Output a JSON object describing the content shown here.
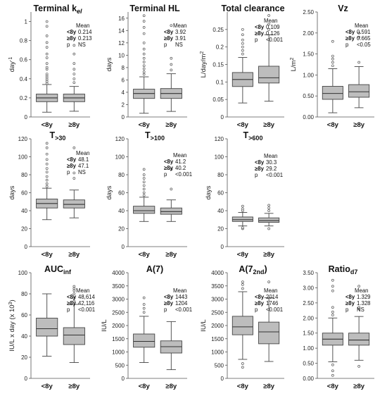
{
  "chart_data": [
    {
      "type": "boxplot",
      "title": "Terminal k",
      "title_sub": "el",
      "title_sub_italic": true,
      "ylabel": "day",
      "ylabel_sup": "-1",
      "ylim": [
        0,
        1.1
      ],
      "yticks": [
        0,
        0.2,
        0.4,
        0.6,
        0.8,
        1
      ],
      "ytick_labels": [
        "0",
        "0.2",
        "0.4",
        "0.6",
        "0.8",
        "1"
      ],
      "categories": [
        "<8y",
        "≥8y"
      ],
      "boxes": [
        {
          "min": 0.05,
          "q1": 0.16,
          "median": 0.2,
          "q3": 0.24,
          "max": 0.34,
          "outliers": [
            0.35,
            0.37,
            0.39,
            0.41,
            0.43,
            0.45,
            0.5,
            0.52,
            0.56,
            0.62,
            0.66,
            0.73,
            0.78,
            0.85,
            0.95,
            1.0
          ]
        },
        {
          "min": 0.06,
          "q1": 0.16,
          "median": 0.2,
          "q3": 0.24,
          "max": 0.32,
          "outliers": [
            0.36,
            0.4,
            0.45,
            0.5,
            0.56,
            0.66,
            0.75
          ]
        }
      ],
      "stats": {
        "header": "Mean",
        "rows": [
          {
            "label": "<8y",
            "value": "0.214"
          },
          {
            "label": "≥8y",
            "value": "0.213"
          },
          {
            "label": "p",
            "value": "NS"
          }
        ]
      }
    },
    {
      "type": "boxplot",
      "title": "Terminal HL",
      "title_sub": "",
      "ylabel": "days",
      "ylabel_sup": "",
      "ylim": [
        0,
        17
      ],
      "yticks": [
        0,
        2,
        4,
        6,
        8,
        10,
        12,
        14,
        16
      ],
      "ytick_labels": [
        "0",
        "2",
        "4",
        "6",
        "8",
        "10",
        "12",
        "14",
        "16"
      ],
      "categories": [
        "<8y",
        "≥8y"
      ],
      "boxes": [
        {
          "min": 0.6,
          "q1": 3.0,
          "median": 3.8,
          "q3": 4.5,
          "max": 6.5,
          "outliers": [
            6.9,
            7.3,
            7.8,
            8.3,
            8.9,
            9.5,
            10.2,
            11.0,
            12.0,
            13.5,
            14.5,
            15.5,
            16.4
          ]
        },
        {
          "min": 0.9,
          "q1": 3.0,
          "median": 3.8,
          "q3": 4.6,
          "max": 7.0,
          "outliers": [
            7.6,
            8.5,
            9.5,
            14.8
          ]
        }
      ],
      "stats": {
        "header": "Mean",
        "rows": [
          {
            "label": "<8y",
            "value": "3.92"
          },
          {
            "label": "≥8y",
            "value": "3.91"
          },
          {
            "label": "p",
            "value": "NS"
          }
        ]
      }
    },
    {
      "type": "boxplot",
      "title": "Total clearance",
      "title_sub": "",
      "ylabel": "L/day/m",
      "ylabel_sup": "2",
      "ylim": [
        0,
        0.3
      ],
      "yticks": [
        0,
        0.05,
        0.1,
        0.15,
        0.2,
        0.25
      ],
      "ytick_labels": [
        "0",
        "0.05",
        "0.1",
        "0.15",
        "0.2",
        "0.25"
      ],
      "categories": [
        "<8y",
        "≥8y"
      ],
      "boxes": [
        {
          "min": 0.04,
          "q1": 0.087,
          "median": 0.107,
          "q3": 0.127,
          "max": 0.17,
          "outliers": [
            0.18,
            0.19,
            0.2,
            0.21,
            0.22,
            0.235,
            0.25
          ]
        },
        {
          "min": 0.045,
          "q1": 0.097,
          "median": 0.112,
          "q3": 0.145,
          "max": 0.235,
          "outliers": [
            0.25,
            0.265,
            0.29
          ]
        }
      ],
      "stats": {
        "header": "Mean",
        "rows": [
          {
            "label": "<8y",
            "value": "0.109"
          },
          {
            "label": "≥8y",
            "value": "0.126"
          },
          {
            "label": "p",
            "value": "<0.001"
          }
        ]
      }
    },
    {
      "type": "boxplot",
      "title": "Vz",
      "title_sub": "",
      "ylabel": "L/m",
      "ylabel_sup": "2",
      "ylim": [
        0,
        2.5
      ],
      "yticks": [
        0,
        0.5,
        1,
        1.5,
        2,
        2.5
      ],
      "ytick_labels": [
        "0.00",
        "0.50",
        "1.00",
        "1.50",
        "2.00",
        "2.50"
      ],
      "categories": [
        "<8y",
        "≥8y"
      ],
      "boxes": [
        {
          "min": 0.1,
          "q1": 0.42,
          "median": 0.56,
          "q3": 0.73,
          "max": 1.15,
          "outliers": [
            1.22,
            1.3,
            1.38,
            1.45,
            1.8
          ]
        },
        {
          "min": 0.22,
          "q1": 0.47,
          "median": 0.6,
          "q3": 0.77,
          "max": 1.2,
          "outliers": [
            1.3,
            1.9,
            2.0
          ]
        }
      ],
      "stats": {
        "header": "Mean",
        "rows": [
          {
            "label": "<8y",
            "value": "0.591"
          },
          {
            "label": "≥8y",
            "value": "0.665"
          },
          {
            "label": "p",
            "value": "<0.05"
          }
        ]
      }
    },
    {
      "type": "boxplot",
      "title": "T",
      "title_sub": ">30",
      "ylabel": "days",
      "ylabel_sup": "",
      "ylim": [
        0,
        120
      ],
      "yticks": [
        0,
        20,
        40,
        60,
        80,
        100,
        120
      ],
      "ytick_labels": [
        "0",
        "20",
        "40",
        "60",
        "80",
        "100",
        "120"
      ],
      "categories": [
        "<8y",
        "≥8y"
      ],
      "boxes": [
        {
          "min": 30,
          "q1": 43,
          "median": 48,
          "q3": 53,
          "max": 65,
          "outliers": [
            67,
            70,
            74,
            78,
            83,
            87,
            92,
            97,
            103,
            110,
            115
          ]
        },
        {
          "min": 32,
          "q1": 43,
          "median": 47,
          "q3": 52,
          "max": 63,
          "outliers": [
            76,
            82,
            110
          ]
        }
      ],
      "stats": {
        "header": "Mean",
        "rows": [
          {
            "label": "<8y",
            "value": "48.1"
          },
          {
            "label": "≥8y",
            "value": "47.1"
          },
          {
            "label": "p",
            "value": "NS"
          }
        ]
      }
    },
    {
      "type": "boxplot",
      "title": "T",
      "title_sub": ">100",
      "ylabel": "days",
      "ylabel_sup": "",
      "ylim": [
        0,
        120
      ],
      "yticks": [
        0,
        20,
        40,
        60,
        80,
        100,
        120
      ],
      "ytick_labels": [
        "0",
        "20",
        "40",
        "60",
        "80",
        "100",
        "120"
      ],
      "categories": [
        "<8y",
        "≥8y"
      ],
      "boxes": [
        {
          "min": 28,
          "q1": 37,
          "median": 40,
          "q3": 45,
          "max": 55,
          "outliers": [
            57,
            60,
            64,
            68,
            72,
            76,
            80,
            86
          ]
        },
        {
          "min": 28,
          "q1": 36,
          "median": 39,
          "q3": 43,
          "max": 52,
          "outliers": [
            64,
            86
          ]
        }
      ],
      "stats": {
        "header": "Mean",
        "rows": [
          {
            "label": "<8y",
            "value": "41.2"
          },
          {
            "label": "≥8y",
            "value": "40.2"
          },
          {
            "label": "p",
            "value": "<0.001"
          }
        ]
      }
    },
    {
      "type": "boxplot",
      "title": "T",
      "title_sub": ">600",
      "ylabel": "days",
      "ylabel_sup": "",
      "ylim": [
        0,
        120
      ],
      "yticks": [
        0,
        20,
        40,
        60,
        80,
        100,
        120
      ],
      "ytick_labels": [
        "0",
        "20",
        "40",
        "60",
        "80",
        "100",
        "120"
      ],
      "categories": [
        "<8y",
        "≥8y"
      ],
      "boxes": [
        {
          "min": 23,
          "q1": 28,
          "median": 30,
          "q3": 33,
          "max": 38,
          "outliers": [
            20,
            21,
            40,
            42,
            45
          ]
        },
        {
          "min": 23,
          "q1": 27,
          "median": 29,
          "q3": 32,
          "max": 37,
          "outliers": [
            20,
            40,
            43,
            46
          ]
        }
      ],
      "stats": {
        "header": "Mean",
        "rows": [
          {
            "label": "<8y",
            "value": "30.3"
          },
          {
            "label": "≥8y",
            "value": "29.2"
          },
          {
            "label": "p",
            "value": "<0.001"
          }
        ]
      }
    },
    {
      "type": "boxplot",
      "title": "AUC",
      "title_sub": "inf",
      "ylabel": "IU/L x day (x 10",
      "ylabel_sup": "3",
      "ylabel_suffix": ")",
      "ylim": [
        0,
        100
      ],
      "yticks": [
        0,
        20,
        40,
        60,
        80,
        100
      ],
      "ytick_labels": [
        "0",
        "20",
        "40",
        "60",
        "80",
        "100"
      ],
      "categories": [
        "<8y",
        "≥8y"
      ],
      "boxes": [
        {
          "min": 21,
          "q1": 40,
          "median": 47,
          "q3": 57,
          "max": 80,
          "outliers": []
        },
        {
          "min": 15,
          "q1": 32,
          "median": 41,
          "q3": 48,
          "max": 70,
          "outliers": [
            73,
            76,
            80,
            83,
            85,
            87
          ]
        }
      ],
      "stats": {
        "header": "Mean",
        "rows": [
          {
            "label": "<8y",
            "value": "48,614"
          },
          {
            "label": "≥8y",
            "value": "42,116"
          },
          {
            "label": "p",
            "value": "<0.001"
          }
        ]
      }
    },
    {
      "type": "boxplot",
      "title": "A(7)",
      "title_sub": "",
      "ylabel": "IU/L",
      "ylabel_sup": "",
      "ylim": [
        0,
        4000
      ],
      "yticks": [
        0,
        500,
        1000,
        1500,
        2000,
        2500,
        3000,
        3500,
        4000
      ],
      "ytick_labels": [
        "0",
        "500",
        "1000",
        "1500",
        "2000",
        "2500",
        "3000",
        "3500",
        "4000"
      ],
      "categories": [
        "<8y",
        "≥8y"
      ],
      "boxes": [
        {
          "min": 600,
          "q1": 1180,
          "median": 1400,
          "q3": 1680,
          "max": 2350,
          "outliers": [
            2500,
            2650,
            2800,
            3050
          ]
        },
        {
          "min": 330,
          "q1": 960,
          "median": 1200,
          "q3": 1420,
          "max": 2150,
          "outliers": []
        }
      ],
      "stats": {
        "header": "Mean",
        "rows": [
          {
            "label": "<8y",
            "value": "1443"
          },
          {
            "label": "≥8y",
            "value": "1204"
          },
          {
            "label": "p",
            "value": "<0.001"
          }
        ]
      }
    },
    {
      "type": "boxplot",
      "title": "A(7",
      "title_sub": "2nd",
      "title_suffix": ")",
      "ylabel": "IU/L",
      "ylabel_sup": "",
      "ylim": [
        0,
        4000
      ],
      "yticks": [
        0,
        500,
        1000,
        1500,
        2000,
        2500,
        3000,
        3500,
        4000
      ],
      "ytick_labels": [
        "0",
        "500",
        "1000",
        "1500",
        "2000",
        "2500",
        "3000",
        "3500",
        "4000"
      ],
      "categories": [
        "<8y",
        "≥8y"
      ],
      "boxes": [
        {
          "min": 720,
          "q1": 1650,
          "median": 1950,
          "q3": 2350,
          "max": 3280,
          "outliers": [
            420,
            560,
            3400,
            3550,
            3650
          ]
        },
        {
          "min": 640,
          "q1": 1310,
          "median": 1760,
          "q3": 2130,
          "max": 3050,
          "outliers": [
            3650
          ]
        }
      ],
      "stats": {
        "header": "Mean",
        "rows": [
          {
            "label": "<8y",
            "value": "2014"
          },
          {
            "label": "≥8y",
            "value": "1746"
          },
          {
            "label": "p",
            "value": "<0.001"
          }
        ]
      }
    },
    {
      "type": "boxplot",
      "title": "Ratio",
      "title_sub": "d7",
      "ylabel": "",
      "ylabel_sup": "",
      "ylim": [
        0,
        3.5
      ],
      "yticks": [
        0,
        0.5,
        1,
        1.5,
        2,
        2.5,
        3,
        3.5
      ],
      "ytick_labels": [
        "0.00",
        "0.50",
        "1.00",
        "1.50",
        "2.00",
        "2.50",
        "3.00",
        "3.50"
      ],
      "categories": [
        "<8y",
        "≥8y"
      ],
      "boxes": [
        {
          "min": 0.55,
          "q1": 1.1,
          "median": 1.3,
          "q3": 1.5,
          "max": 2.0,
          "outliers": [
            0.1,
            0.25,
            0.45,
            2.1,
            2.2,
            2.35,
            2.9,
            3.05,
            3.25
          ]
        },
        {
          "min": 0.6,
          "q1": 1.1,
          "median": 1.27,
          "q3": 1.5,
          "max": 2.05,
          "outliers": [
            0.4,
            2.3,
            2.35,
            3.05
          ]
        }
      ],
      "stats": {
        "header": "Mean",
        "rows": [
          {
            "label": "<8y",
            "value": "1.329"
          },
          {
            "label": "≥8y",
            "value": "1.328"
          },
          {
            "label": "p",
            "value": "NS"
          }
        ]
      }
    }
  ]
}
